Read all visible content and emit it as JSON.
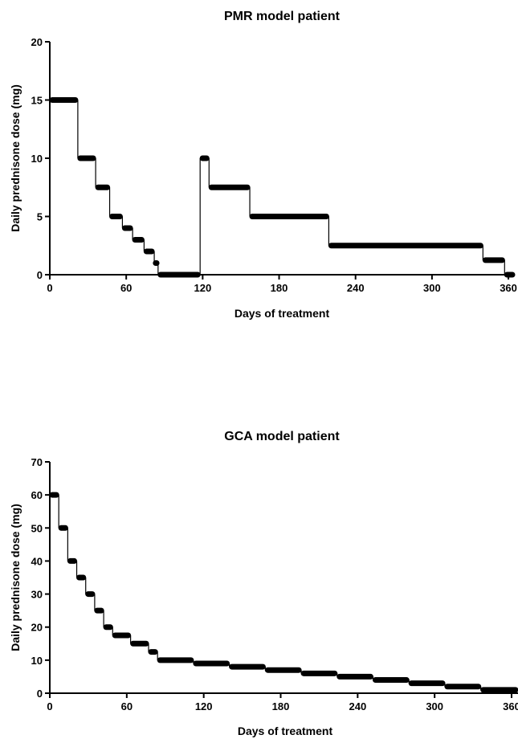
{
  "chart_data": [
    {
      "type": "line",
      "title": "PMR model patient",
      "xlabel": "Days of treatment",
      "ylabel": "Daily prednisone dose (mg)",
      "xlim": [
        0,
        365
      ],
      "ylim": [
        0,
        20
      ],
      "xticks": [
        0,
        60,
        120,
        180,
        240,
        300,
        360
      ],
      "yticks": [
        0,
        5,
        10,
        15,
        20
      ],
      "grid": false,
      "series": [
        {
          "segments": [
            {
              "x0": 0,
              "x1": 22,
              "y": 15
            },
            {
              "x0": 22,
              "x1": 36,
              "y": 10
            },
            {
              "x0": 36,
              "x1": 47,
              "y": 7.5
            },
            {
              "x0": 47,
              "x1": 57,
              "y": 5
            },
            {
              "x0": 57,
              "x1": 65,
              "y": 4
            },
            {
              "x0": 65,
              "x1": 74,
              "y": 3
            },
            {
              "x0": 74,
              "x1": 82,
              "y": 2
            },
            {
              "x0": 82,
              "x1": 85,
              "y": 1
            },
            {
              "x0": 85,
              "x1": 118,
              "y": 0
            },
            {
              "x0": 118,
              "x1": 125,
              "y": 10
            },
            {
              "x0": 125,
              "x1": 157,
              "y": 7.5
            },
            {
              "x0": 157,
              "x1": 219,
              "y": 5
            },
            {
              "x0": 219,
              "x1": 340,
              "y": 2.5
            },
            {
              "x0": 340,
              "x1": 357,
              "y": 1.25
            },
            {
              "x0": 357,
              "x1": 365,
              "y": 0
            }
          ]
        }
      ]
    },
    {
      "type": "line",
      "title": "GCA model patient",
      "xlabel": "Days of treatment",
      "ylabel": "Daily prednisone dose (mg)",
      "xlim": [
        0,
        365
      ],
      "ylim": [
        0,
        70
      ],
      "xticks": [
        0,
        60,
        120,
        180,
        240,
        300,
        360
      ],
      "yticks": [
        0,
        10,
        20,
        30,
        40,
        50,
        60,
        70
      ],
      "grid": false,
      "series": [
        {
          "segments": [
            {
              "x0": 0,
              "x1": 7,
              "y": 60
            },
            {
              "x0": 7,
              "x1": 14,
              "y": 50
            },
            {
              "x0": 14,
              "x1": 21,
              "y": 40
            },
            {
              "x0": 21,
              "x1": 28,
              "y": 35
            },
            {
              "x0": 28,
              "x1": 35,
              "y": 30
            },
            {
              "x0": 35,
              "x1": 42,
              "y": 25
            },
            {
              "x0": 42,
              "x1": 49,
              "y": 20
            },
            {
              "x0": 49,
              "x1": 63,
              "y": 17.5
            },
            {
              "x0": 63,
              "x1": 77,
              "y": 15
            },
            {
              "x0": 77,
              "x1": 84,
              "y": 12.5
            },
            {
              "x0": 84,
              "x1": 112,
              "y": 10
            },
            {
              "x0": 112,
              "x1": 140,
              "y": 9
            },
            {
              "x0": 140,
              "x1": 168,
              "y": 8
            },
            {
              "x0": 168,
              "x1": 196,
              "y": 7
            },
            {
              "x0": 196,
              "x1": 224,
              "y": 6
            },
            {
              "x0": 224,
              "x1": 252,
              "y": 5
            },
            {
              "x0": 252,
              "x1": 280,
              "y": 4
            },
            {
              "x0": 280,
              "x1": 308,
              "y": 3
            },
            {
              "x0": 308,
              "x1": 336,
              "y": 2
            },
            {
              "x0": 336,
              "x1": 365,
              "y": 1
            }
          ]
        }
      ]
    }
  ]
}
